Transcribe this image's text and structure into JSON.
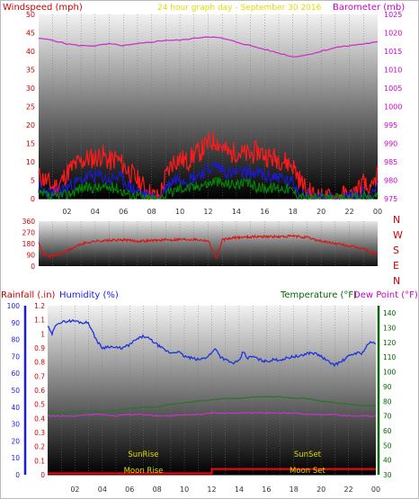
{
  "header": {
    "left_title": "Windspeed (mph)",
    "center_title": "24 hour graph day - September 30 2016",
    "right_title": "Barometer (mb)"
  },
  "colors": {
    "wind": "#ff1a1a",
    "wind_avg": "#1a1acc",
    "wind_min": "#008800",
    "barometer": "#cc33cc",
    "direction": "#dd1111",
    "humidity": "#1a33dd",
    "temperature": "#227722",
    "dewpoint": "#cc33cc",
    "rain": "#ff0000",
    "sun_moon_label": "#dddd00",
    "axis_red": "#cc0000",
    "axis_magenta": "#cc00cc",
    "axis_blue": "#1a1aee",
    "axis_green": "#006600"
  },
  "hour_labels": [
    "02",
    "04",
    "06",
    "08",
    "10",
    "12",
    "14",
    "16",
    "18",
    "20",
    "22",
    "00"
  ],
  "chart_data": [
    {
      "type": "line",
      "name": "windspeed-barometer",
      "title": "24 hour graph day - September 30 2016",
      "ylabel": "Windspeed (mph)",
      "y2label": "Barometer (mb)",
      "ylim": [
        0,
        50
      ],
      "y2lim": [
        975,
        1025
      ],
      "yticks": [
        0,
        5,
        10,
        15,
        20,
        25,
        30,
        35,
        40,
        45,
        50
      ],
      "y2ticks": [
        975,
        980,
        985,
        990,
        995,
        1000,
        1005,
        1010,
        1015,
        1020,
        1025
      ],
      "xlabels": [
        "02",
        "04",
        "06",
        "08",
        "10",
        "12",
        "14",
        "16",
        "18",
        "20",
        "22",
        "00"
      ],
      "series": [
        {
          "key": "barometer",
          "axis": "right",
          "x": [
            0,
            1,
            2,
            3,
            4,
            5,
            6,
            7,
            8,
            9,
            10,
            11,
            12,
            13,
            14,
            15,
            16,
            17,
            18,
            19,
            20,
            21,
            22,
            23,
            24
          ],
          "y": [
            1018.5,
            1018,
            1017,
            1016.5,
            1016.5,
            1017,
            1016.5,
            1017,
            1017.5,
            1018,
            1018,
            1018.5,
            1019,
            1018.5,
            1017.5,
            1016.5,
            1015.5,
            1014.5,
            1013.5,
            1014,
            1015,
            1016,
            1016.5,
            1017,
            1017.5
          ]
        },
        {
          "key": "gust",
          "axis": "left",
          "x": [
            0,
            0.5,
            1,
            1.5,
            2,
            2.5,
            3,
            3.5,
            4,
            4.5,
            5,
            5.5,
            6,
            6.5,
            7,
            7.5,
            8,
            8.5,
            9,
            9.5,
            10,
            10.5,
            11,
            11.5,
            12,
            12.5,
            13,
            13.5,
            14,
            14.5,
            15,
            15.5,
            16,
            16.5,
            17,
            17.5,
            18,
            18.5,
            19,
            19.5,
            20,
            20.5,
            21,
            21.5,
            22,
            22.5,
            23,
            23.5,
            24
          ],
          "y": [
            6,
            5,
            3,
            4,
            7,
            9,
            10,
            11,
            11,
            12,
            10,
            11,
            9,
            7,
            5,
            3,
            1,
            0,
            6,
            10,
            11,
            10,
            12,
            13,
            15,
            16,
            14,
            12,
            13,
            12,
            12,
            13,
            12,
            11,
            11,
            10,
            9,
            5,
            2,
            1,
            0,
            0,
            0,
            1,
            0,
            2,
            4,
            1,
            7
          ]
        },
        {
          "key": "wind_avg",
          "axis": "left",
          "x": [
            0,
            0.5,
            1,
            1.5,
            2,
            2.5,
            3,
            3.5,
            4,
            4.5,
            5,
            5.5,
            6,
            6.5,
            7,
            7.5,
            8,
            8.5,
            9,
            9.5,
            10,
            10.5,
            11,
            11.5,
            12,
            12.5,
            13,
            13.5,
            14,
            14.5,
            15,
            15.5,
            16,
            16.5,
            17,
            17.5,
            18,
            18.5,
            19,
            19.5,
            20,
            20.5,
            21,
            21.5,
            22,
            22.5,
            23,
            23.5,
            24
          ],
          "y": [
            3,
            2,
            1,
            2,
            3,
            4,
            5,
            6,
            6,
            6,
            5,
            6,
            5,
            3,
            2,
            1,
            0,
            0,
            3,
            5,
            6,
            5,
            6,
            7,
            8,
            9,
            8,
            7,
            7,
            7,
            7,
            7,
            6,
            6,
            6,
            5,
            4,
            2,
            1,
            0,
            0,
            0,
            0,
            0,
            0,
            1,
            2,
            0,
            3
          ]
        },
        {
          "key": "wind_min",
          "axis": "left",
          "x": [
            0,
            0.5,
            1,
            1.5,
            2,
            2.5,
            3,
            3.5,
            4,
            4.5,
            5,
            5.5,
            6,
            6.5,
            7,
            7.5,
            8,
            8.5,
            9,
            9.5,
            10,
            10.5,
            11,
            11.5,
            12,
            12.5,
            13,
            13.5,
            14,
            14.5,
            15,
            15.5,
            16,
            16.5,
            17,
            17.5,
            18,
            18.5,
            19,
            19.5,
            20,
            20.5,
            21,
            21.5,
            22,
            22.5,
            23,
            23.5,
            24
          ],
          "y": [
            1,
            1,
            0,
            1,
            1,
            2,
            3,
            3,
            3,
            3,
            3,
            3,
            2,
            1,
            1,
            0,
            0,
            0,
            1,
            2,
            3,
            3,
            3,
            4,
            4,
            5,
            4,
            4,
            4,
            4,
            4,
            3,
            3,
            3,
            3,
            3,
            2,
            1,
            0,
            0,
            0,
            0,
            0,
            0,
            0,
            0,
            1,
            0,
            1
          ]
        }
      ]
    },
    {
      "type": "line",
      "name": "wind-direction",
      "ylim": [
        0,
        360
      ],
      "yticks": [
        0,
        90,
        180,
        270,
        360
      ],
      "compass": [
        "N",
        "W",
        "S",
        "E",
        "N"
      ],
      "series": [
        {
          "key": "direction",
          "x": [
            0,
            0.3,
            0.8,
            1.5,
            2,
            2.5,
            3,
            3.5,
            4,
            5,
            6,
            7,
            8,
            9,
            10,
            11,
            12,
            12.3,
            12.6,
            13,
            14,
            15,
            16,
            17,
            18,
            19,
            20,
            21,
            22,
            23,
            23.5,
            24
          ],
          "y": [
            200,
            100,
            80,
            95,
            120,
            150,
            175,
            190,
            200,
            205,
            210,
            200,
            205,
            210,
            215,
            215,
            205,
            130,
            60,
            210,
            230,
            235,
            238,
            235,
            240,
            230,
            200,
            180,
            160,
            140,
            110,
            100
          ]
        }
      ]
    },
    {
      "type": "line",
      "name": "humidity-temperature-rain",
      "ylabel": "Humidity (%)",
      "y_rain_label": "Rainfall (.in)",
      "y2label": "Temperature (°F)",
      "y3label": "Dew Point (°F)",
      "ylim": [
        0,
        100
      ],
      "y_rain_lim": [
        0,
        1.2
      ],
      "y2lim": [
        30,
        145
      ],
      "yticks": [
        0,
        10,
        20,
        30,
        40,
        50,
        60,
        70,
        80,
        90,
        100
      ],
      "y_rain_ticks": [
        "0",
        "0.1",
        "0.2",
        "0.3",
        "0.4",
        "0.5",
        "0.6",
        "0.7",
        "0.8",
        "0.9",
        "1",
        "1.1",
        "1.2"
      ],
      "y2ticks": [
        30,
        40,
        50,
        60,
        70,
        80,
        90,
        100,
        110,
        120,
        130,
        140
      ],
      "series": [
        {
          "key": "humidity",
          "axis": "left",
          "x": [
            0,
            0.3,
            0.7,
            1,
            1.5,
            2,
            2.5,
            3,
            3.3,
            3.7,
            4,
            4.5,
            5,
            5.5,
            6,
            6.5,
            7,
            7.5,
            8,
            8.5,
            9,
            9.5,
            10,
            10.5,
            11,
            11.5,
            12,
            12.3,
            12.6,
            13,
            13.5,
            14,
            14.3,
            14.6,
            15,
            15.5,
            16,
            16.5,
            17,
            17.5,
            18,
            18.5,
            19,
            19.5,
            20,
            20.5,
            21,
            21.5,
            22,
            22.5,
            23,
            23.5,
            24
          ],
          "y": [
            88,
            83,
            90,
            90,
            91,
            91,
            90,
            90,
            84,
            78,
            75,
            76,
            75,
            75,
            77,
            80,
            82,
            80,
            77,
            74,
            72,
            73,
            70,
            69,
            68,
            69,
            72,
            75,
            70,
            68,
            66,
            67,
            73,
            69,
            70,
            68,
            67,
            68,
            68,
            69,
            70,
            70,
            72,
            72,
            70,
            67,
            65,
            67,
            70,
            72,
            72,
            78,
            78
          ]
        },
        {
          "key": "temperature",
          "axis": "right",
          "x": [
            0,
            1,
            2,
            3,
            4,
            5,
            6,
            7,
            8,
            9,
            10,
            11,
            12,
            13,
            14,
            15,
            16,
            17,
            18,
            19,
            20,
            21,
            22,
            23,
            24
          ],
          "y": [
            72,
            72,
            73,
            73,
            73,
            74,
            75,
            76,
            76,
            78,
            79,
            80,
            81,
            82,
            82,
            83,
            83,
            83,
            82,
            82,
            80,
            79,
            78,
            77,
            77
          ]
        },
        {
          "key": "dewpoint",
          "axis": "right",
          "x": [
            0,
            1,
            2,
            3,
            4,
            5,
            6,
            7,
            8,
            9,
            10,
            11,
            12,
            13,
            14,
            15,
            16,
            17,
            18,
            19,
            20,
            21,
            22,
            23,
            24
          ],
          "y": [
            70,
            70,
            70,
            71,
            71,
            70,
            71,
            71,
            70,
            70,
            71,
            71,
            72,
            72,
            72,
            72,
            72,
            72,
            72,
            71,
            71,
            71,
            70,
            70,
            70
          ]
        },
        {
          "key": "rain",
          "axis": "rain",
          "x": [
            0,
            12,
            12.01,
            24
          ],
          "y": [
            0.01,
            0.01,
            0.04,
            0.04
          ]
        }
      ],
      "annotations": [
        {
          "label": "SunRise",
          "x": 7.0,
          "row": 1
        },
        {
          "label": "SunSet",
          "x": 19.0,
          "row": 1
        },
        {
          "label": "Moon Rise",
          "x": 7.0,
          "row": 2
        },
        {
          "label": "Moon Set",
          "x": 19.0,
          "row": 2
        }
      ]
    }
  ]
}
